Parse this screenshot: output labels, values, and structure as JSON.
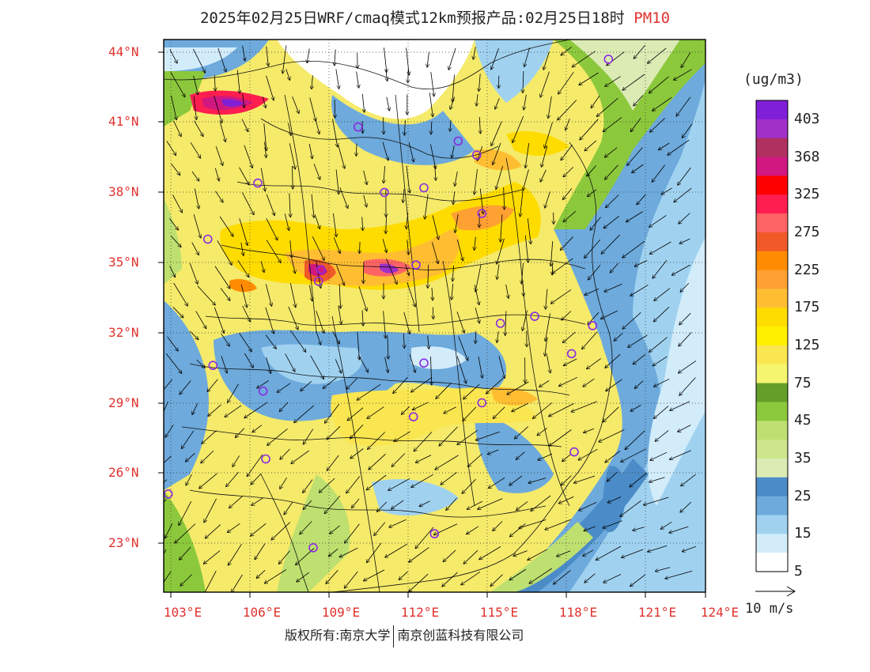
{
  "title": {
    "main": "2025年02月25日WRF/cmaq模式12km预报产品:02月25日18时",
    "variable": "PM10"
  },
  "lat_labels": [
    "44°N",
    "41°N",
    "38°N",
    "35°N",
    "32°N",
    "29°N",
    "26°N",
    "23°N"
  ],
  "lon_labels": [
    "103°E",
    "106°E",
    "109°E",
    "112°E",
    "115°E",
    "118°E",
    "121°E",
    "124°E"
  ],
  "colorbar": {
    "unit": "(ug/m3)",
    "labels": [
      "403",
      "368",
      "325",
      "275",
      "225",
      "175",
      "125",
      "75",
      "45",
      "35",
      "25",
      "15",
      "5"
    ],
    "colors": [
      "#7f20d8",
      "#a030c8",
      "#b03060",
      "#d01880",
      "#ff0000",
      "#ff1e50",
      "#ff6464",
      "#f05a28",
      "#ff8c00",
      "#ffa032",
      "#ffbe32",
      "#ffdc00",
      "#fff000",
      "#fae650",
      "#f5f570",
      "#64a028",
      "#8cc83c",
      "#bee070",
      "#cde68c",
      "#dcebb4",
      "#4b8cc8",
      "#6eaadc",
      "#a0d2f0",
      "#d2ecfa",
      "#ffffff"
    ]
  },
  "wind_legend": {
    "label": "10 m/s"
  },
  "copyright": {
    "left": "版权所有:南京大学",
    "right": "南京创蓝科技有限公司"
  },
  "map": {
    "extent": {
      "lon": [
        102.8,
        124
      ],
      "lat": [
        21.3,
        44.4
      ]
    },
    "stations": [
      {
        "lon": 119.6,
        "lat": 43.7
      },
      {
        "lon": 110.1,
        "lat": 40.8
      },
      {
        "lon": 113.9,
        "lat": 40.2
      },
      {
        "lon": 114.6,
        "lat": 39.6
      },
      {
        "lon": 106.3,
        "lat": 38.4
      },
      {
        "lon": 111.1,
        "lat": 38.0
      },
      {
        "lon": 112.6,
        "lat": 38.2
      },
      {
        "lon": 114.8,
        "lat": 37.1
      },
      {
        "lon": 104.4,
        "lat": 36.0
      },
      {
        "lon": 108.7,
        "lat": 34.7
      },
      {
        "lon": 108.6,
        "lat": 34.2
      },
      {
        "lon": 112.3,
        "lat": 34.9
      },
      {
        "lon": 116.8,
        "lat": 32.7
      },
      {
        "lon": 115.5,
        "lat": 32.4
      },
      {
        "lon": 119.0,
        "lat": 32.3
      },
      {
        "lon": 104.6,
        "lat": 30.6
      },
      {
        "lon": 112.6,
        "lat": 30.7
      },
      {
        "lon": 118.2,
        "lat": 31.1
      },
      {
        "lon": 106.5,
        "lat": 29.5
      },
      {
        "lon": 114.8,
        "lat": 29.0
      },
      {
        "lon": 112.2,
        "lat": 28.4
      },
      {
        "lon": 118.3,
        "lat": 26.9
      },
      {
        "lon": 106.6,
        "lat": 26.6
      },
      {
        "lon": 102.9,
        "lat": 25.1
      },
      {
        "lon": 108.4,
        "lat": 22.8
      },
      {
        "lon": 113.0,
        "lat": 23.4
      }
    ]
  }
}
